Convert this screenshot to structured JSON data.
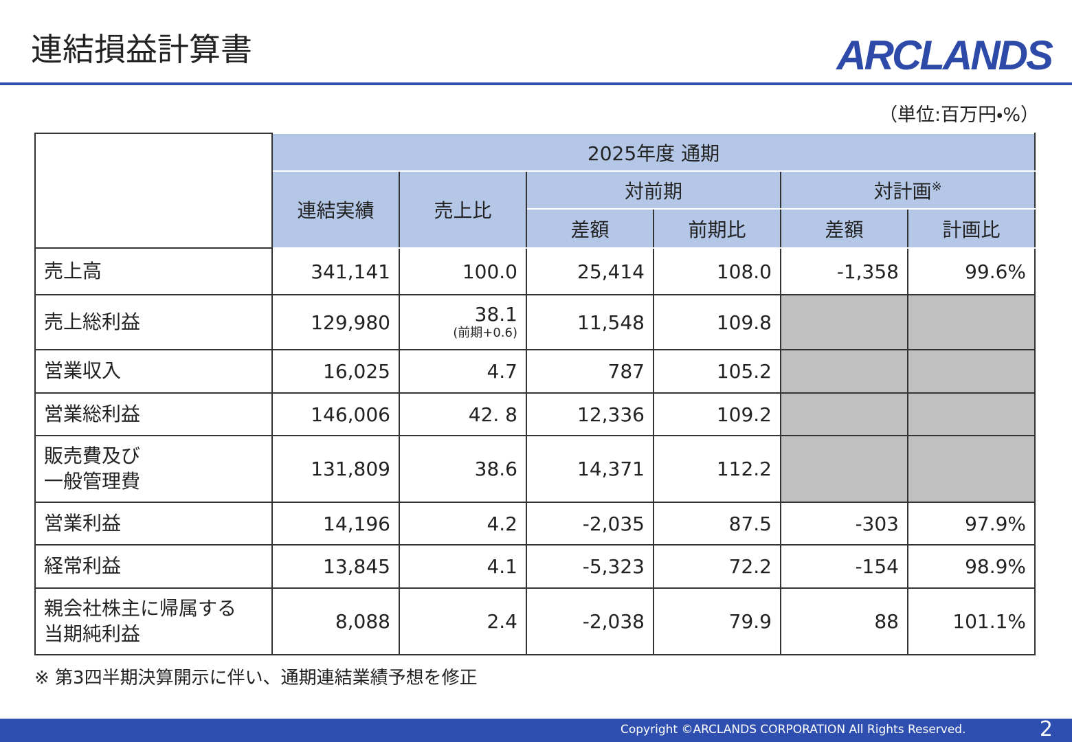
{
  "header": {
    "title": "連結損益計算書",
    "logo": "ARCLANDS"
  },
  "unit": "（単位:百万円・%）",
  "table": {
    "group_header": "2025年度 通期",
    "columns": {
      "actual": "連結実績",
      "sales_ratio": "売上比",
      "vs_prior": "対前期",
      "vs_plan": "対計画",
      "vs_plan_mark": "※",
      "prior_diff": "差額",
      "prior_ratio": "前期比",
      "plan_diff": "差額",
      "plan_ratio": "計画比"
    },
    "rows": [
      {
        "label": "売上高",
        "cells": [
          "341,141",
          "100.0",
          "25,414",
          "108.0",
          "-1,358",
          "99.6%"
        ]
      },
      {
        "label": "売上総利益",
        "cells": [
          "129,980",
          "38.1",
          "11,548",
          "109.8",
          null,
          null
        ],
        "ratio_note": "(前期+0.6)"
      },
      {
        "label": "営業収入",
        "cells": [
          "16,025",
          "4.7",
          "787",
          "105.2",
          null,
          null
        ]
      },
      {
        "label": "営業総利益",
        "cells": [
          "146,006",
          "42. 8",
          "12,336",
          "109.2",
          null,
          null
        ]
      },
      {
        "label": "販売費及び\n一般管理費",
        "cells": [
          "131,809",
          "38.6",
          "14,371",
          "112.2",
          null,
          null
        ]
      },
      {
        "label": "営業利益",
        "cells": [
          "14,196",
          "4.2",
          "-2,035",
          "87.5",
          "-303",
          "97.9%"
        ]
      },
      {
        "label": "経常利益",
        "cells": [
          "13,845",
          "4.1",
          "-5,323",
          "72.2",
          "-154",
          "98.9%"
        ]
      },
      {
        "label": "親会社株主に帰属する\n当期純利益",
        "cells": [
          "8,088",
          "2.4",
          "-2,038",
          "79.9",
          "88",
          "101.1%"
        ]
      }
    ]
  },
  "footnote": "※ 第3四半期決算開示に伴い、通期連結業績予想を修正",
  "footer": {
    "copyright": "Copyright ©ARCLANDS CORPORATION All Rights Reserved.",
    "page": "2"
  }
}
